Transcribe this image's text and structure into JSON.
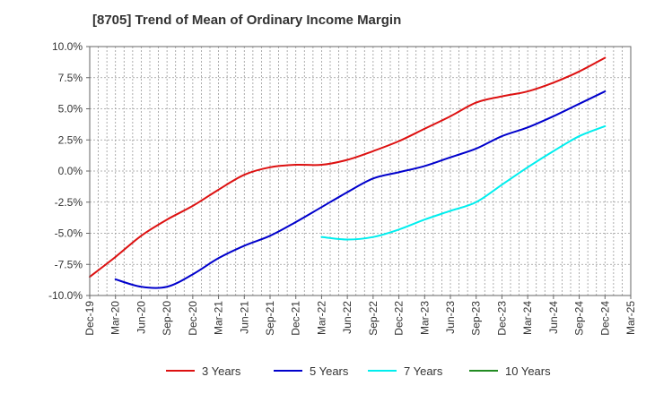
{
  "chart_data": {
    "type": "line",
    "title": "[8705]  Trend of Mean of Ordinary Income Margin",
    "xlabel": "",
    "ylabel": "",
    "ylim": [
      -10.0,
      10.0
    ],
    "y_ticks": [
      "10.0%",
      "7.5%",
      "5.0%",
      "2.5%",
      "0.0%",
      "-2.5%",
      "-5.0%",
      "-7.5%",
      "-10.0%"
    ],
    "y_tick_values": [
      10.0,
      7.5,
      5.0,
      2.5,
      0.0,
      -2.5,
      -5.0,
      -7.5,
      -10.0
    ],
    "categories": [
      "Dec-19",
      "Mar-20",
      "Jun-20",
      "Sep-20",
      "Dec-20",
      "Mar-21",
      "Jun-21",
      "Sep-21",
      "Dec-21",
      "Mar-22",
      "Jun-22",
      "Sep-22",
      "Dec-22",
      "Mar-23",
      "Jun-23",
      "Sep-23",
      "Dec-23",
      "Mar-24",
      "Jun-24",
      "Sep-24",
      "Dec-24",
      "Mar-25"
    ],
    "grid": true,
    "legend_position": "bottom",
    "series": [
      {
        "name": "3 Years",
        "color": "#dd1111",
        "values": [
          -8.5,
          -6.9,
          -5.2,
          -3.9,
          -2.8,
          -1.5,
          -0.3,
          0.3,
          0.5,
          0.5,
          0.9,
          1.6,
          2.4,
          3.4,
          4.4,
          5.5,
          6.0,
          6.4,
          7.1,
          8.0,
          9.1,
          null
        ]
      },
      {
        "name": "5 Years",
        "color": "#0000cc",
        "values": [
          null,
          -8.7,
          -9.3,
          -9.3,
          -8.3,
          -7.0,
          -6.0,
          -5.2,
          -4.1,
          -2.9,
          -1.7,
          -0.6,
          -0.1,
          0.4,
          1.1,
          1.8,
          2.8,
          3.5,
          4.4,
          5.4,
          6.4,
          null
        ]
      },
      {
        "name": "7 Years",
        "color": "#00eeee",
        "values": [
          null,
          null,
          null,
          null,
          null,
          null,
          null,
          null,
          null,
          -5.3,
          -5.5,
          -5.3,
          -4.7,
          -3.9,
          -3.2,
          -2.5,
          -1.1,
          0.3,
          1.6,
          2.8,
          3.6,
          null
        ]
      },
      {
        "name": "10 Years",
        "color": "#228b22",
        "values": [
          null,
          null,
          null,
          null,
          null,
          null,
          null,
          null,
          null,
          null,
          null,
          null,
          null,
          null,
          null,
          null,
          null,
          null,
          null,
          null,
          null,
          null
        ]
      }
    ]
  }
}
